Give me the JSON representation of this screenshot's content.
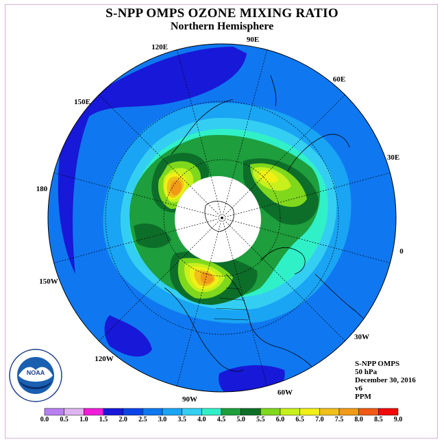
{
  "header": {
    "title": "S-NPP OMPS OZONE MIXING RATIO",
    "subtitle": "Northern Hemisphere"
  },
  "map": {
    "projection": "north-polar-stereographic",
    "longitude_labels": [
      "90E",
      "60E",
      "30E",
      "0",
      "30W",
      "60W",
      "90W",
      "120W",
      "150W",
      "180",
      "150E",
      "120E"
    ],
    "polar_night_region": "no-data"
  },
  "info": {
    "instrument": "S-NPP OMPS",
    "level": "50 hPa",
    "date": "December 30, 2016",
    "version": "v6",
    "units": "PPM"
  },
  "colorbar": {
    "labels": [
      "0.0",
      "0.5",
      "1.0",
      "1.5",
      "2.0",
      "2.5",
      "3.0",
      "3.5",
      "4.0",
      "4.5",
      "5.0",
      "5.5",
      "6.0",
      "6.5",
      "7.0",
      "7.5",
      "8.0",
      "8.5",
      "9.0"
    ],
    "colors": [
      "#b780f0",
      "#dcb4f0",
      "#f01cd8",
      "#1818d8",
      "#0a44e6",
      "#0f78f0",
      "#1aa4f4",
      "#34cef2",
      "#30f0c8",
      "#1e9e3c",
      "#0d6e2a",
      "#80d81c",
      "#c8f01c",
      "#f0f014",
      "#f0c01a",
      "#f09a18",
      "#f05a14",
      "#f00a0a",
      "#8c5040"
    ]
  },
  "logo": {
    "text": "NOAA",
    "ring_text": "NATIONAL OCEANIC AND ATMOSPHERIC ADMINISTRATION · U.S. DEPARTMENT OF COMMERCE"
  }
}
